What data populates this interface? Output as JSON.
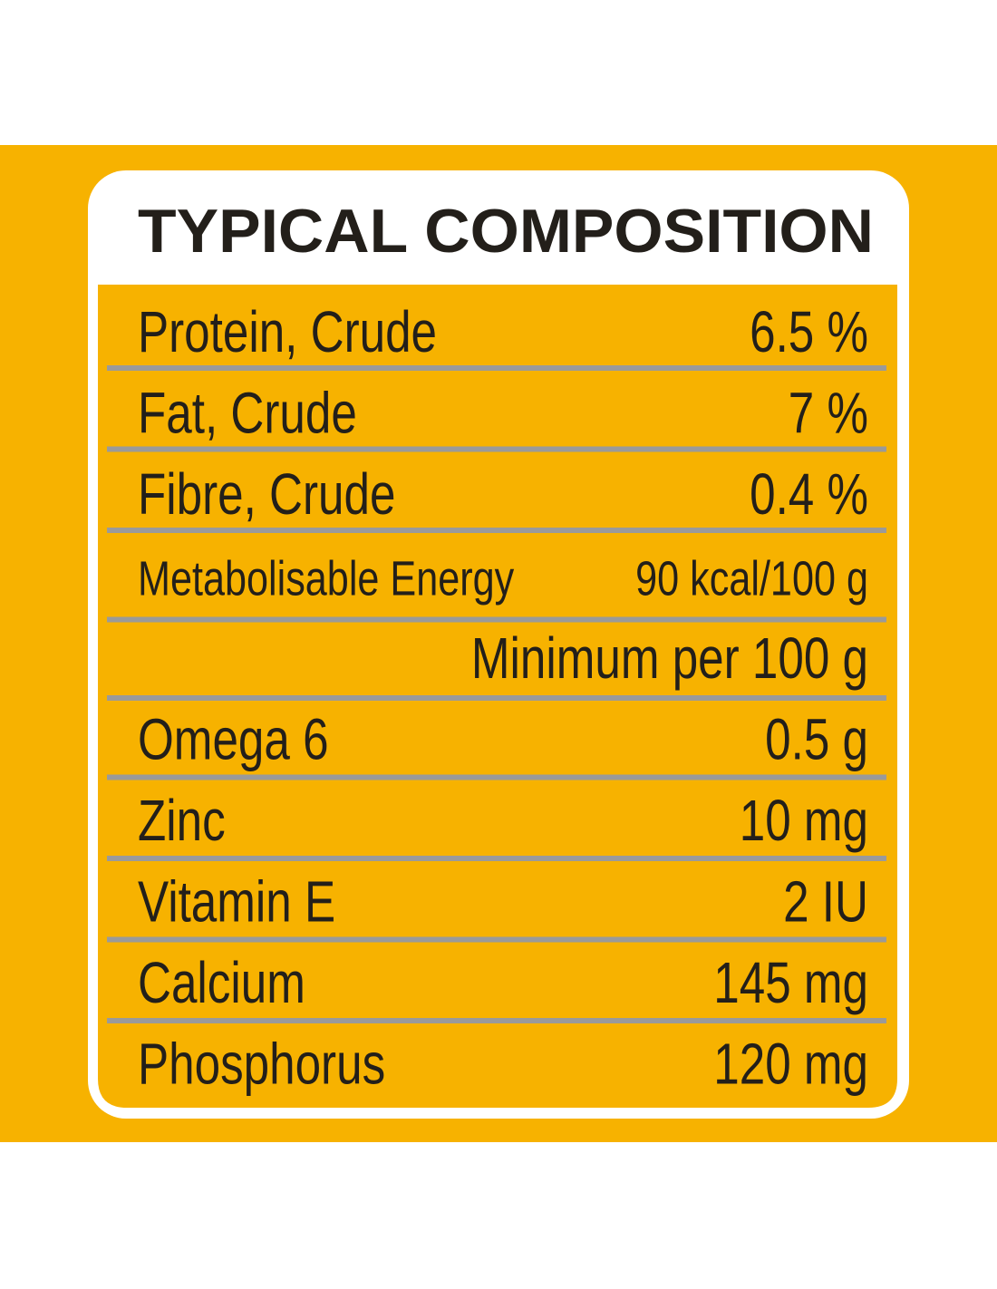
{
  "label": {
    "title": "TYPICAL COMPOSITION",
    "rows": [
      [
        "Protein, Crude",
        "6.5 %"
      ],
      [
        "Fat, Crude",
        "7 %"
      ],
      [
        "Fibre, Crude",
        "0.4 %"
      ],
      [
        "Metabolisable Energy",
        "90 kcal/100 g"
      ]
    ],
    "minimum_header": "Minimum per 100 g",
    "minimum_rows": [
      [
        "Omega 6",
        "0.5 g"
      ],
      [
        "Zinc",
        "10 mg"
      ],
      [
        "Vitamin E",
        "2 IU"
      ],
      [
        "Calcium",
        "145 mg"
      ],
      [
        "Phosphorus",
        "120 mg"
      ]
    ]
  }
}
